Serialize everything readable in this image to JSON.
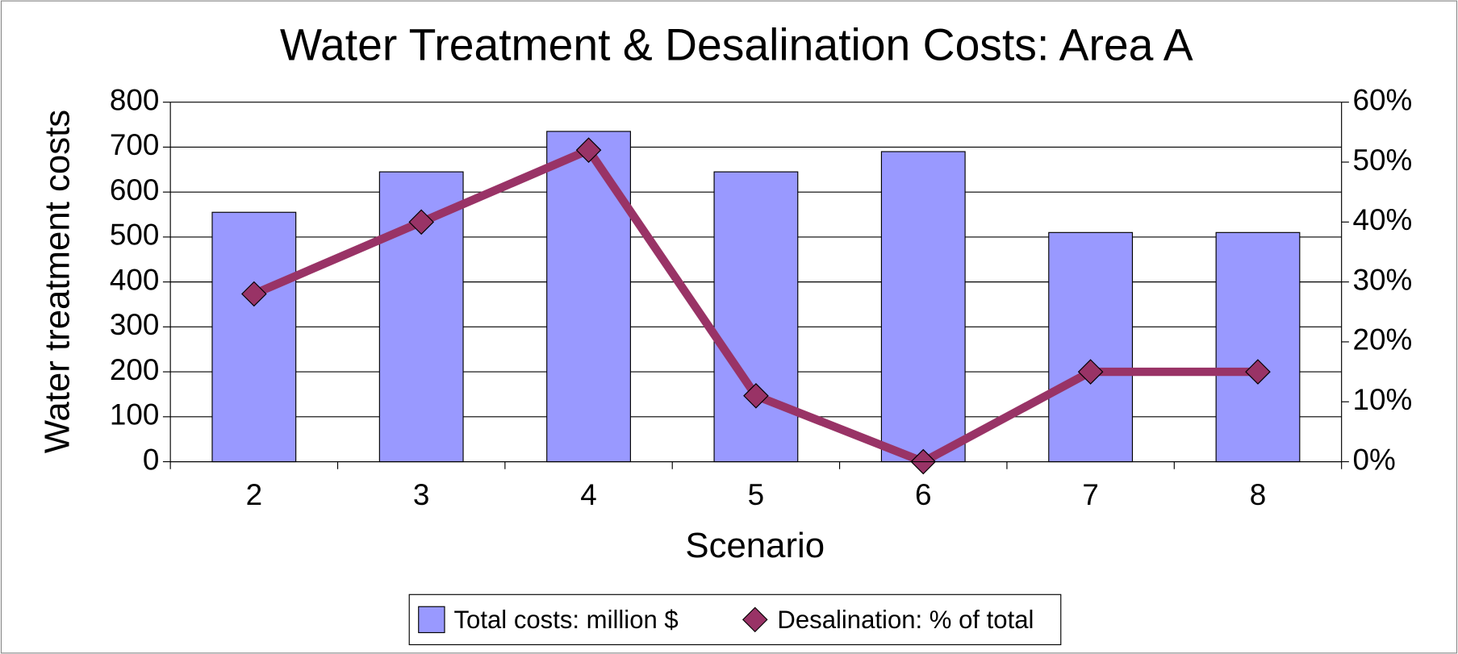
{
  "chart_data": {
    "type": "bar_line",
    "title": "Water Treatment & Desalination Costs: Area A",
    "xlabel": "Scenario",
    "ylabel": "Water treatment costs",
    "categories": [
      "2",
      "3",
      "4",
      "5",
      "6",
      "7",
      "8"
    ],
    "series": [
      {
        "name": "Total costs: million $",
        "type": "bar",
        "color": "#9999ff",
        "values": [
          555,
          645,
          735,
          645,
          690,
          510,
          510
        ]
      },
      {
        "name": "Desalination: % of total",
        "type": "line",
        "color": "#993366",
        "axis": "y2",
        "values": [
          28,
          40,
          52,
          11,
          0,
          15,
          15
        ]
      }
    ],
    "ylim": [
      0,
      800
    ],
    "yticks": [
      0,
      100,
      200,
      300,
      400,
      500,
      600,
      700,
      800
    ],
    "y2lim": [
      0,
      60
    ],
    "y2ticks": [
      {
        "value": 0,
        "label": "0%"
      },
      {
        "value": 10,
        "label": "10%"
      },
      {
        "value": 20,
        "label": "20%"
      },
      {
        "value": 30,
        "label": "30%"
      },
      {
        "value": 40,
        "label": "40%"
      },
      {
        "value": 50,
        "label": "50%"
      },
      {
        "value": 60,
        "label": "60%"
      }
    ],
    "grid": true,
    "legend": "bottom"
  }
}
